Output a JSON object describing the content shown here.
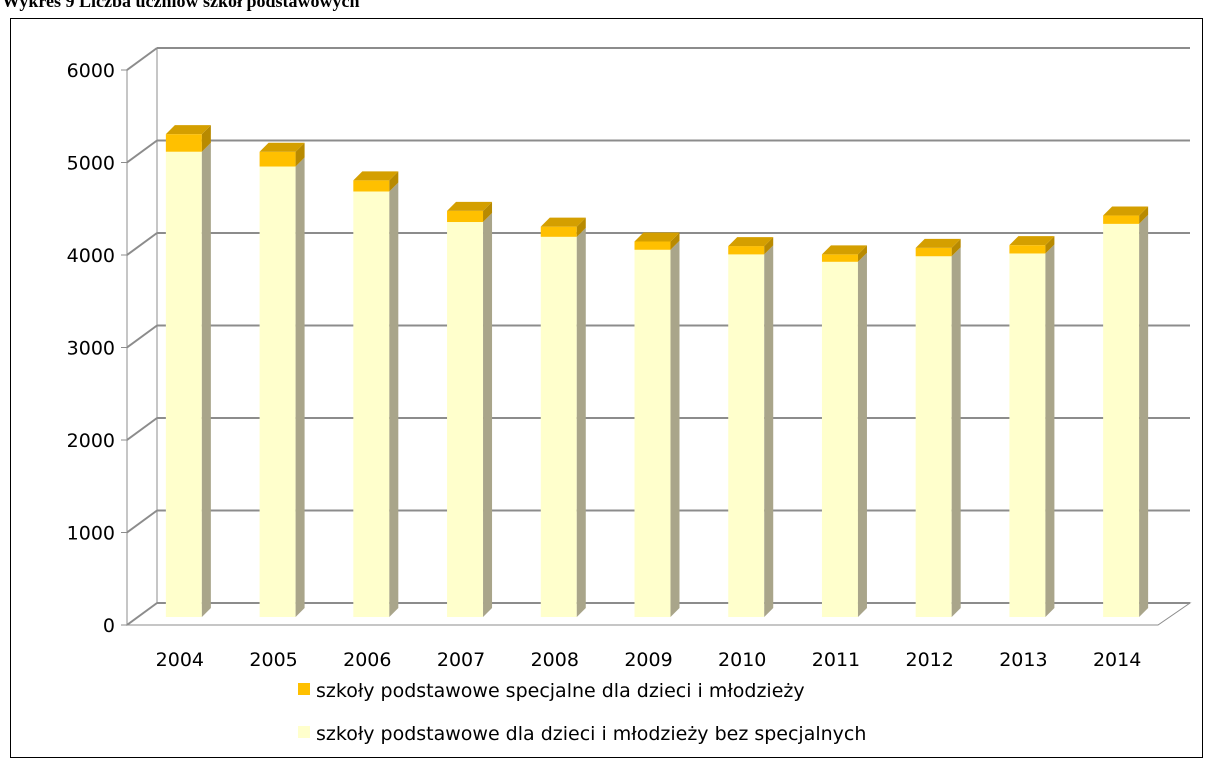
{
  "page": {
    "title": "Wykres 9 Liczba uczniów szkół podstawowych"
  },
  "chart_data": {
    "type": "bar",
    "stacked": true,
    "style": "3d",
    "categories": [
      "2004",
      "2005",
      "2006",
      "2007",
      "2008",
      "2009",
      "2010",
      "2011",
      "2012",
      "2013",
      "2014"
    ],
    "series": [
      {
        "name": "szkoły podstawowe dla dzieci i młodzieży bez specjalnych",
        "color": "#FFFFCC",
        "values": [
          5030,
          4870,
          4600,
          4270,
          4110,
          3970,
          3920,
          3840,
          3900,
          3930,
          4250
        ]
      },
      {
        "name": "szkoły podstawowe specjalne dla dzieci i młodzieży",
        "color": "#FFC000",
        "values": [
          190,
          160,
          120,
          120,
          110,
          90,
          90,
          80,
          90,
          90,
          90
        ]
      }
    ],
    "yticks": [
      0,
      1000,
      2000,
      3000,
      4000,
      5000,
      6000
    ],
    "ylim": [
      0,
      6000
    ],
    "grid": true,
    "legend": "bottom",
    "legend_order": [
      1,
      0
    ]
  }
}
